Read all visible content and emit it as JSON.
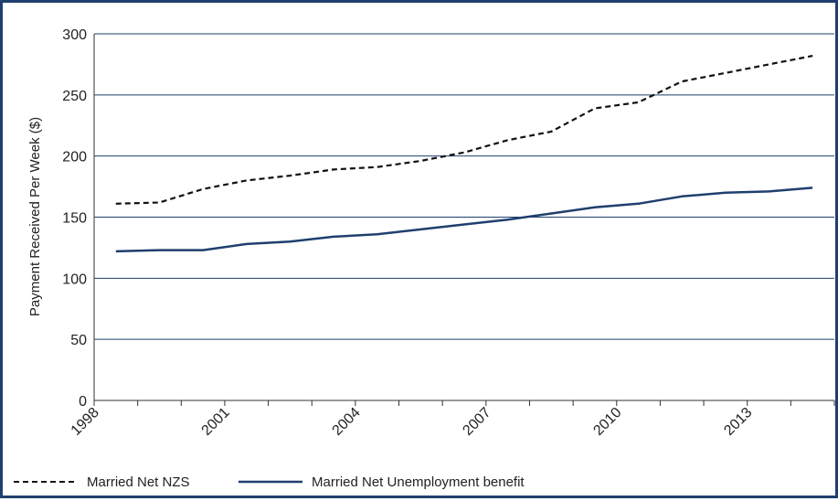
{
  "chart_data": {
    "type": "line",
    "ylabel": "Payment Received Per Week ($)",
    "xlabel": "",
    "ylim": [
      0,
      300
    ],
    "yticks": [
      0,
      50,
      100,
      150,
      200,
      250,
      300
    ],
    "xlim": [
      1998,
      2015
    ],
    "xtick_labels": [
      "1998",
      "2001",
      "2004",
      "2007",
      "2010",
      "2013"
    ],
    "grid": "horizontal",
    "legend_position": "bottom",
    "series": [
      {
        "name": "Married Net NZS",
        "style": "dashed",
        "color": "#111111",
        "x": [
          1998.5,
          1999.5,
          2000.5,
          2001.5,
          2002.5,
          2003.5,
          2004.5,
          2005.5,
          2006.5,
          2007.5,
          2008.5,
          2009.5,
          2010.5,
          2011.5,
          2012.5,
          2013.5,
          2014.5
        ],
        "values": [
          161,
          162,
          173,
          180,
          184,
          189,
          191,
          196,
          203,
          213,
          220,
          239,
          244,
          261,
          268,
          275,
          282
        ]
      },
      {
        "name": "Married Net Unemployment benefit",
        "style": "solid",
        "color": "#1f3f6e",
        "x": [
          1998.5,
          1999.5,
          2000.5,
          2001.5,
          2002.5,
          2003.5,
          2004.5,
          2005.5,
          2006.5,
          2007.5,
          2008.5,
          2009.5,
          2010.5,
          2011.5,
          2012.5,
          2013.5,
          2014.5
        ],
        "values": [
          122,
          123,
          123,
          128,
          130,
          134,
          136,
          140,
          144,
          148,
          153,
          158,
          161,
          167,
          170,
          171,
          174
        ]
      }
    ]
  }
}
